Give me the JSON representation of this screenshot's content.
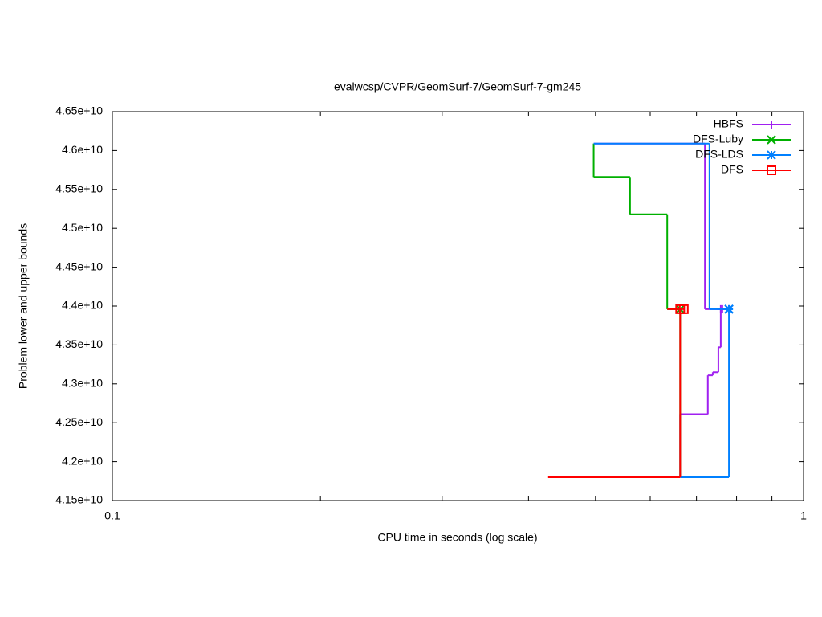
{
  "chart_data": {
    "type": "step",
    "title": "evalwcsp/CVPR/GeomSurf-7/GeomSurf-7-gm245",
    "x_label": "CPU time in seconds (log scale)",
    "y_label": "Problem lower and upper bounds",
    "xscale": "log",
    "xlim": [
      0.1,
      1
    ],
    "xticks": [
      0.1,
      1
    ],
    "ylim": [
      41500000000,
      46500000000
    ],
    "yticks": [
      {
        "value": 41500000000,
        "label": "4.15e+10"
      },
      {
        "value": 42000000000,
        "label": "4.2e+10"
      },
      {
        "value": 42500000000,
        "label": "4.25e+10"
      },
      {
        "value": 43000000000,
        "label": "4.3e+10"
      },
      {
        "value": 43500000000,
        "label": "4.35e+10"
      },
      {
        "value": 44000000000,
        "label": "4.4e+10"
      },
      {
        "value": 44500000000,
        "label": "4.45e+10"
      },
      {
        "value": 45000000000,
        "label": "4.5e+10"
      },
      {
        "value": 45500000000,
        "label": "4.55e+10"
      },
      {
        "value": 46000000000,
        "label": "4.6e+10"
      },
      {
        "value": 46500000000,
        "label": "4.65e+10"
      }
    ],
    "legend": "top-right",
    "series": [
      {
        "name": "HBFS",
        "color": "#a020f0",
        "marker": "plus",
        "upper": {
          "x": [
            0.497,
            0.72,
            0.763
          ],
          "values": [
            46090000000,
            43960000000,
            43960000000
          ]
        },
        "lower": {
          "x": [
            0.663,
            0.663,
            0.727,
            0.739,
            0.753,
            0.759
          ],
          "values": [
            41800000000,
            42610000000,
            43110000000,
            43150000000,
            43470000000,
            43960000000
          ]
        }
      },
      {
        "name": "DFS-Luby",
        "color": "#00b000",
        "marker": "cross",
        "upper": {
          "x": [
            0.497,
            0.497,
            0.561,
            0.635,
            0.663
          ],
          "values": [
            46090000000,
            45660000000,
            45180000000,
            43960000000,
            43960000000
          ]
        },
        "lower": {
          "x": [
            0.663,
            0.663
          ],
          "values": [
            41800000000,
            43960000000
          ]
        }
      },
      {
        "name": "DFS-LDS",
        "color": "#0080ff",
        "marker": "star",
        "upper": {
          "x": [
            0.497,
            0.731,
            0.78
          ],
          "values": [
            46090000000,
            43960000000,
            43960000000
          ]
        },
        "lower": {
          "x": [
            0.663,
            0.78
          ],
          "values": [
            41800000000,
            43960000000
          ]
        }
      },
      {
        "name": "DFS",
        "color": "#ff0000",
        "marker": "square",
        "upper": {
          "x": [
            0.635,
            0.671
          ],
          "values": [
            43960000000,
            43960000000
          ]
        },
        "lower": {
          "x": [
            0.427,
            0.663
          ],
          "values": [
            41800000000,
            43960000000
          ]
        }
      }
    ]
  }
}
